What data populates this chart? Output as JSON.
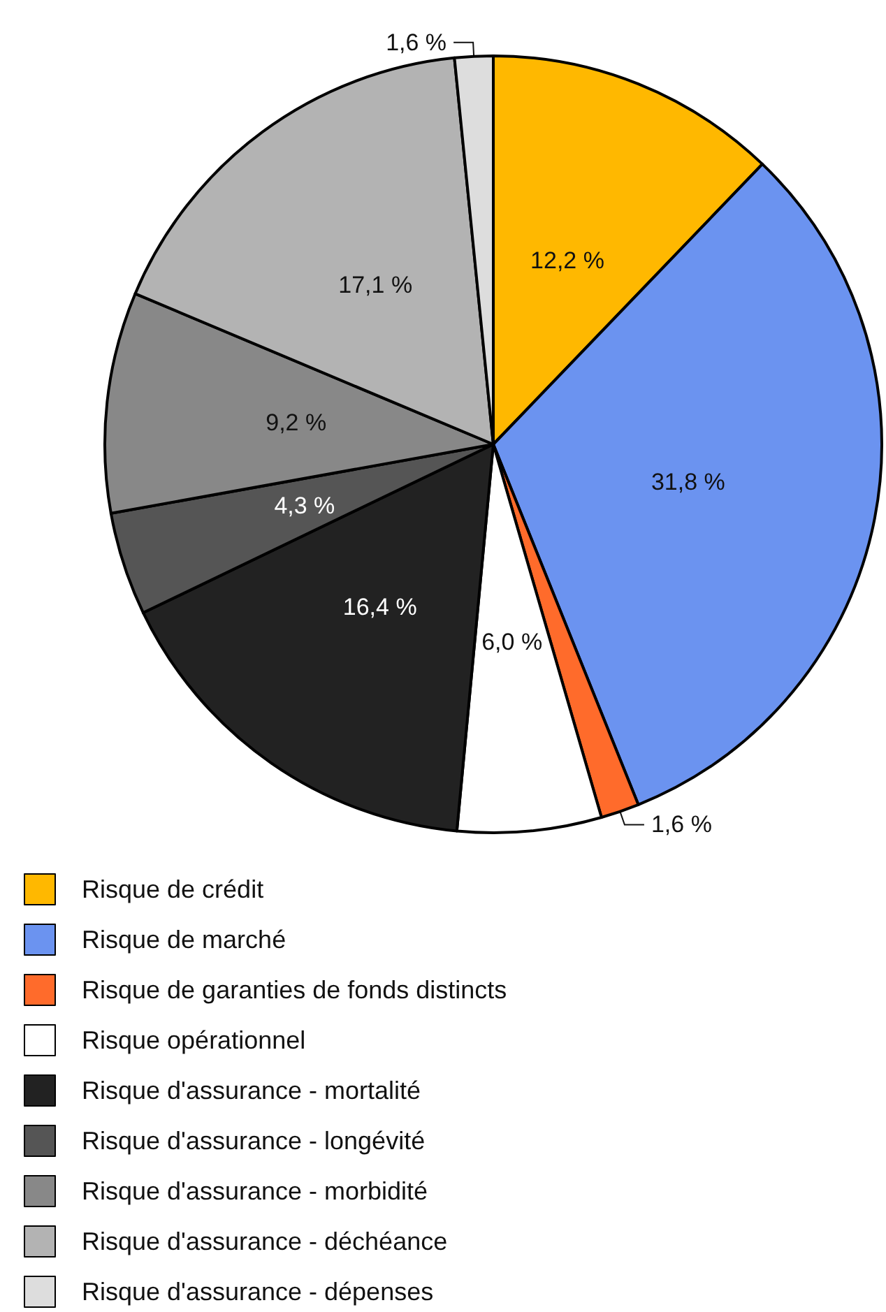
{
  "chart_data": {
    "type": "pie",
    "categories": [
      "Risque de crédit",
      "Risque de marché",
      "Risque de garanties de fonds distincts",
      "Risque opérationnel",
      "Risque d'assurance - mortalité",
      "Risque d'assurance - longévité",
      "Risque d'assurance - morbidité",
      "Risque d'assurance - déchéance",
      "Risque d'assurance - dépenses"
    ],
    "values": [
      12.2,
      31.8,
      1.6,
      6.0,
      16.4,
      4.3,
      9.2,
      17.1,
      1.6
    ],
    "value_labels": [
      "12,2 %",
      "31,8 %",
      "1,6 %",
      "6,0 %",
      "16,4 %",
      "4,3 %",
      "9,2 %",
      "17,1 %",
      "1,6 %"
    ],
    "colors": [
      "#ffb800",
      "#6b93f0",
      "#ff6b2b",
      "#ffffff",
      "#222222",
      "#555555",
      "#888888",
      "#b3b3b3",
      "#dddddd"
    ],
    "legend": "bottom"
  }
}
